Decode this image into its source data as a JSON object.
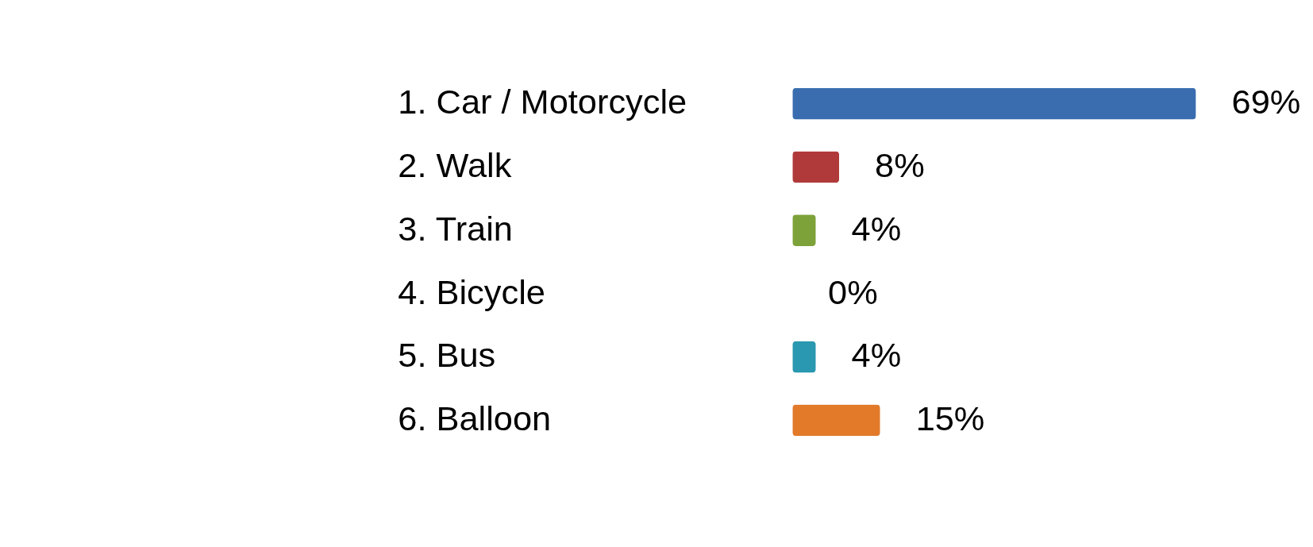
{
  "chart_data": {
    "type": "bar",
    "orientation": "horizontal",
    "categories": [
      "1. Car / Motorcycle",
      "2. Walk",
      "3. Train",
      "4. Bicycle",
      "5. Bus",
      "6. Balloon"
    ],
    "values": [
      69,
      8,
      4,
      0,
      4,
      15
    ],
    "colors": [
      "#3a6db0",
      "#b03a3a",
      "#7da23a",
      "#4a2a6e",
      "#2a98b0",
      "#e27a2a"
    ],
    "value_labels": [
      "69%",
      "8%",
      "4%",
      "0%",
      "4%",
      "15%"
    ],
    "legend": false,
    "grid": false
  }
}
